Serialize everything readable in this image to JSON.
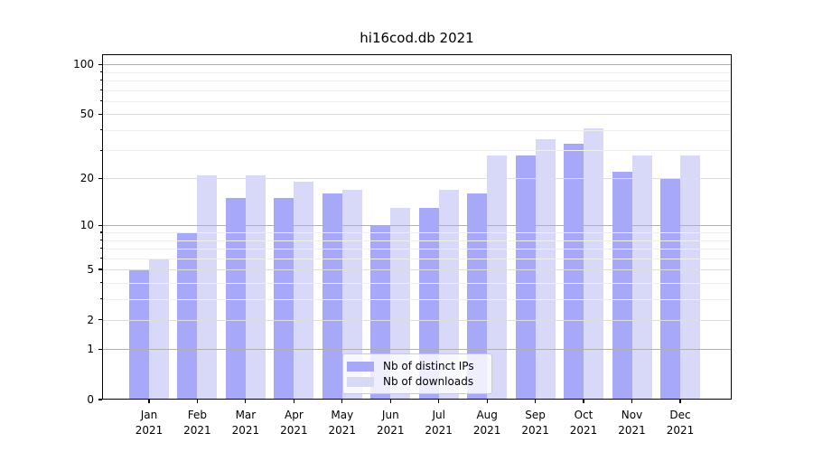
{
  "chart_data": {
    "type": "bar",
    "title": "hi16cod.db 2021",
    "categories": [
      "Jan 2021",
      "Feb 2021",
      "Mar 2021",
      "Apr 2021",
      "May 2021",
      "Jun 2021",
      "Jul 2021",
      "Aug 2021",
      "Sep 2021",
      "Oct 2021",
      "Nov 2021",
      "Dec 2021"
    ],
    "series": [
      {
        "name": "Nb of distinct IPs",
        "color": "#a8a8f8",
        "values": [
          5,
          9,
          15,
          15,
          16,
          10,
          13,
          16,
          28,
          33,
          22,
          20
        ]
      },
      {
        "name": "Nb of downloads",
        "color": "#d8d8f8",
        "values": [
          6,
          21,
          21,
          19,
          17,
          13,
          17,
          28,
          35,
          41,
          28,
          28
        ]
      }
    ],
    "xlabel": "",
    "ylabel": "",
    "yscale": "log1p",
    "ylim": [
      0,
      116
    ],
    "yticks": [
      0,
      1,
      2,
      5,
      10,
      20,
      50,
      100
    ],
    "yticks_minor": [
      3,
      4,
      6,
      7,
      8,
      9,
      30,
      40,
      60,
      70,
      80,
      90
    ],
    "grid": true,
    "legend_position": "lower center",
    "colors": {
      "major_grid": "#b0b0b0",
      "sub_grid": "#dedede",
      "minor_grid": "#efefef",
      "spine": "#000000",
      "background": "#ffffff"
    }
  }
}
